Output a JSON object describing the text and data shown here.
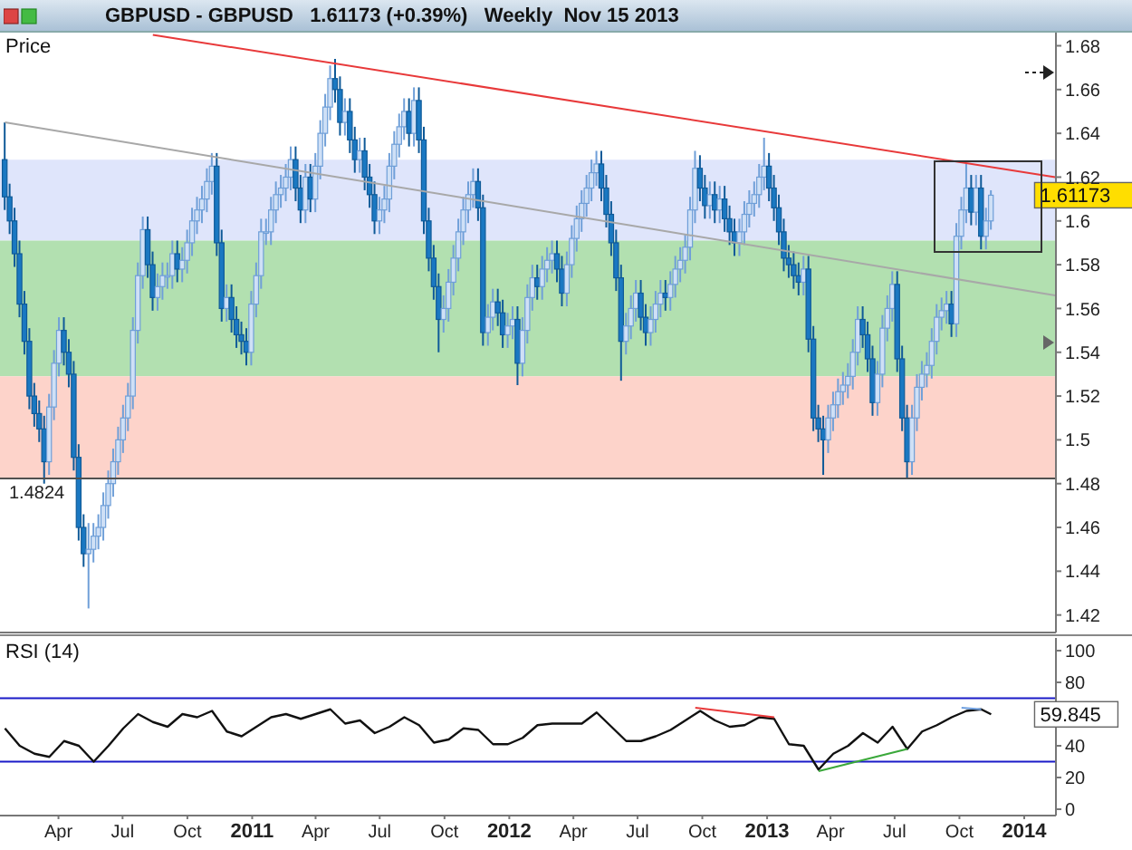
{
  "chart_data": [
    {
      "type": "candlestick",
      "title": "GBPUSD - GBPUSD   1.61173 (+0.39%)   Weekly  Nov 15 2013",
      "ylabel": "Price",
      "tick_labels": "y",
      "x": [
        "2010-01-15",
        "2010-01-22",
        "2010-01-29",
        "2010-02-05",
        "2010-02-12",
        "2010-02-19",
        "2010-02-26",
        "2010-03-05",
        "2010-03-12",
        "2010-03-19",
        "2010-03-26",
        "2010-04-02",
        "2010-04-09",
        "2010-04-16",
        "2010-04-23",
        "2010-04-30",
        "2010-05-07",
        "2010-05-14",
        "2010-05-21",
        "2010-05-28",
        "2010-06-04",
        "2010-06-11",
        "2010-06-18",
        "2010-06-25",
        "2010-07-02",
        "2010-07-09",
        "2010-07-16",
        "2010-07-23",
        "2010-07-30",
        "2010-08-06",
        "2010-08-13",
        "2010-08-20",
        "2010-08-27",
        "2010-09-03",
        "2010-09-10",
        "2010-09-17",
        "2010-09-24",
        "2010-10-01",
        "2010-10-08",
        "2010-10-15",
        "2010-10-22",
        "2010-10-29",
        "2010-11-05",
        "2010-11-12",
        "2010-11-19",
        "2010-11-26",
        "2010-12-03",
        "2010-12-10",
        "2010-12-17",
        "2010-12-24",
        "2010-12-31",
        "2011-01-07",
        "2011-01-14",
        "2011-01-21",
        "2011-01-28",
        "2011-02-04",
        "2011-02-11",
        "2011-02-18",
        "2011-02-25",
        "2011-03-04",
        "2011-03-11",
        "2011-03-18",
        "2011-03-25",
        "2011-04-01",
        "2011-04-08",
        "2011-04-15",
        "2011-04-22",
        "2011-04-29",
        "2011-05-06",
        "2011-05-13",
        "2011-05-20",
        "2011-05-27",
        "2011-06-03",
        "2011-06-10",
        "2011-06-17",
        "2011-06-24",
        "2011-07-01",
        "2011-07-08",
        "2011-07-15",
        "2011-07-22",
        "2011-07-29",
        "2011-08-05",
        "2011-08-12",
        "2011-08-19",
        "2011-08-26",
        "2011-09-02",
        "2011-09-09",
        "2011-09-16",
        "2011-09-23",
        "2011-09-30",
        "2011-10-07",
        "2011-10-14",
        "2011-10-21",
        "2011-10-28",
        "2011-11-04",
        "2011-11-11",
        "2011-11-18",
        "2011-11-25",
        "2011-12-02",
        "2011-12-09",
        "2011-12-16",
        "2011-12-23",
        "2011-12-30",
        "2012-01-06",
        "2012-01-13",
        "2012-01-20",
        "2012-01-27",
        "2012-02-03",
        "2012-02-10",
        "2012-02-17",
        "2012-02-24",
        "2012-03-02",
        "2012-03-09",
        "2012-03-16",
        "2012-03-23",
        "2012-03-30",
        "2012-04-06",
        "2012-04-13",
        "2012-04-20",
        "2012-04-27",
        "2012-05-04",
        "2012-05-11",
        "2012-05-18",
        "2012-05-25",
        "2012-06-01",
        "2012-06-08",
        "2012-06-15",
        "2012-06-22",
        "2012-06-29",
        "2012-07-06",
        "2012-07-13",
        "2012-07-20",
        "2012-07-27",
        "2012-08-03",
        "2012-08-10",
        "2012-08-17",
        "2012-08-24",
        "2012-08-31",
        "2012-09-07",
        "2012-09-14",
        "2012-09-21",
        "2012-09-28",
        "2012-10-05",
        "2012-10-12",
        "2012-10-19",
        "2012-10-26",
        "2012-11-02",
        "2012-11-09",
        "2012-11-16",
        "2012-11-23",
        "2012-11-30",
        "2012-12-07",
        "2012-12-14",
        "2012-12-21",
        "2012-12-28",
        "2013-01-04",
        "2013-01-11",
        "2013-01-18",
        "2013-01-25",
        "2013-02-01",
        "2013-02-08",
        "2013-02-15",
        "2013-02-22",
        "2013-03-01",
        "2013-03-08",
        "2013-03-15",
        "2013-03-22",
        "2013-03-29",
        "2013-04-05",
        "2013-04-12",
        "2013-04-19",
        "2013-04-26",
        "2013-05-03",
        "2013-05-10",
        "2013-05-17",
        "2013-05-24",
        "2013-05-31",
        "2013-06-07",
        "2013-06-14",
        "2013-06-21",
        "2013-06-28",
        "2013-07-05",
        "2013-07-12",
        "2013-07-19",
        "2013-07-26",
        "2013-08-02",
        "2013-08-09",
        "2013-08-16",
        "2013-08-23",
        "2013-08-30",
        "2013-09-06",
        "2013-09-13",
        "2013-09-20",
        "2013-09-27",
        "2013-10-04",
        "2013-10-11",
        "2013-10-18",
        "2013-10-25",
        "2013-11-01",
        "2013-11-08",
        "2013-11-15"
      ],
      "ohlc": [
        [
          1.628,
          1.645,
          1.605,
          1.611
        ],
        [
          1.611,
          1.617,
          1.594,
          1.6
        ],
        [
          1.6,
          1.606,
          1.579,
          1.585
        ],
        [
          1.585,
          1.591,
          1.556,
          1.562
        ],
        [
          1.562,
          1.568,
          1.539,
          1.545
        ],
        [
          1.545,
          1.551,
          1.514,
          1.52
        ],
        [
          1.52,
          1.526,
          1.506,
          1.512
        ],
        [
          1.512,
          1.518,
          1.499,
          1.505
        ],
        [
          1.505,
          1.511,
          1.48,
          1.49
        ],
        [
          1.49,
          1.521,
          1.484,
          1.515
        ],
        [
          1.515,
          1.541,
          1.509,
          1.535
        ],
        [
          1.535,
          1.556,
          1.529,
          1.55
        ],
        [
          1.55,
          1.556,
          1.534,
          1.54
        ],
        [
          1.54,
          1.546,
          1.524,
          1.53
        ],
        [
          1.53,
          1.536,
          1.486,
          1.492
        ],
        [
          1.492,
          1.498,
          1.454,
          1.46
        ],
        [
          1.46,
          1.466,
          1.442,
          1.448
        ],
        [
          1.448,
          1.462,
          1.423,
          1.45
        ],
        [
          1.45,
          1.462,
          1.444,
          1.456
        ],
        [
          1.456,
          1.466,
          1.45,
          1.46
        ],
        [
          1.46,
          1.476,
          1.454,
          1.47
        ],
        [
          1.47,
          1.486,
          1.464,
          1.48
        ],
        [
          1.48,
          1.496,
          1.474,
          1.49
        ],
        [
          1.49,
          1.506,
          1.484,
          1.5
        ],
        [
          1.5,
          1.516,
          1.494,
          1.51
        ],
        [
          1.51,
          1.526,
          1.504,
          1.52
        ],
        [
          1.52,
          1.556,
          1.514,
          1.55
        ],
        [
          1.55,
          1.581,
          1.544,
          1.575
        ],
        [
          1.575,
          1.602,
          1.569,
          1.596
        ],
        [
          1.596,
          1.602,
          1.574,
          1.58
        ],
        [
          1.58,
          1.586,
          1.559,
          1.565
        ],
        [
          1.565,
          1.576,
          1.559,
          1.57
        ],
        [
          1.57,
          1.581,
          1.564,
          1.575
        ],
        [
          1.575,
          1.581,
          1.569,
          1.575
        ],
        [
          1.575,
          1.591,
          1.569,
          1.585
        ],
        [
          1.585,
          1.591,
          1.572,
          1.578
        ],
        [
          1.578,
          1.588,
          1.572,
          1.582
        ],
        [
          1.582,
          1.596,
          1.576,
          1.59
        ],
        [
          1.59,
          1.606,
          1.584,
          1.6
        ],
        [
          1.6,
          1.611,
          1.594,
          1.605
        ],
        [
          1.605,
          1.616,
          1.599,
          1.61
        ],
        [
          1.61,
          1.624,
          1.604,
          1.618
        ],
        [
          1.618,
          1.631,
          1.612,
          1.625
        ],
        [
          1.625,
          1.631,
          1.584,
          1.59
        ],
        [
          1.59,
          1.596,
          1.554,
          1.56
        ],
        [
          1.56,
          1.571,
          1.554,
          1.565
        ],
        [
          1.565,
          1.571,
          1.549,
          1.555
        ],
        [
          1.555,
          1.561,
          1.542,
          1.548
        ],
        [
          1.548,
          1.554,
          1.539,
          1.545
        ],
        [
          1.545,
          1.551,
          1.534,
          1.54
        ],
        [
          1.54,
          1.568,
          1.534,
          1.562
        ],
        [
          1.562,
          1.581,
          1.556,
          1.575
        ],
        [
          1.575,
          1.601,
          1.569,
          1.595
        ],
        [
          1.595,
          1.601,
          1.589,
          1.595
        ],
        [
          1.595,
          1.611,
          1.589,
          1.605
        ],
        [
          1.605,
          1.618,
          1.599,
          1.612
        ],
        [
          1.612,
          1.621,
          1.606,
          1.615
        ],
        [
          1.615,
          1.626,
          1.609,
          1.62
        ],
        [
          1.62,
          1.634,
          1.614,
          1.628
        ],
        [
          1.628,
          1.634,
          1.609,
          1.615
        ],
        [
          1.615,
          1.621,
          1.599,
          1.605
        ],
        [
          1.605,
          1.626,
          1.599,
          1.62
        ],
        [
          1.62,
          1.626,
          1.604,
          1.61
        ],
        [
          1.61,
          1.631,
          1.604,
          1.625
        ],
        [
          1.625,
          1.646,
          1.619,
          1.64
        ],
        [
          1.64,
          1.658,
          1.634,
          1.652
        ],
        [
          1.652,
          1.671,
          1.646,
          1.665
        ],
        [
          1.665,
          1.674,
          1.654,
          1.66
        ],
        [
          1.66,
          1.666,
          1.639,
          1.645
        ],
        [
          1.645,
          1.656,
          1.639,
          1.65
        ],
        [
          1.65,
          1.656,
          1.631,
          1.637
        ],
        [
          1.637,
          1.643,
          1.622,
          1.628
        ],
        [
          1.628,
          1.638,
          1.622,
          1.632
        ],
        [
          1.632,
          1.638,
          1.614,
          1.62
        ],
        [
          1.62,
          1.626,
          1.606,
          1.612
        ],
        [
          1.612,
          1.618,
          1.594,
          1.6
        ],
        [
          1.6,
          1.611,
          1.594,
          1.605
        ],
        [
          1.605,
          1.616,
          1.599,
          1.61
        ],
        [
          1.61,
          1.631,
          1.604,
          1.625
        ],
        [
          1.625,
          1.641,
          1.619,
          1.635
        ],
        [
          1.635,
          1.649,
          1.629,
          1.643
        ],
        [
          1.643,
          1.656,
          1.637,
          1.65
        ],
        [
          1.65,
          1.656,
          1.634,
          1.64
        ],
        [
          1.64,
          1.661,
          1.634,
          1.655
        ],
        [
          1.655,
          1.661,
          1.631,
          1.637
        ],
        [
          1.637,
          1.643,
          1.594,
          1.6
        ],
        [
          1.6,
          1.606,
          1.577,
          1.583
        ],
        [
          1.583,
          1.589,
          1.564,
          1.57
        ],
        [
          1.57,
          1.576,
          1.54,
          1.555
        ],
        [
          1.555,
          1.566,
          1.549,
          1.56
        ],
        [
          1.56,
          1.578,
          1.554,
          1.572
        ],
        [
          1.572,
          1.589,
          1.566,
          1.583
        ],
        [
          1.583,
          1.601,
          1.577,
          1.595
        ],
        [
          1.595,
          1.611,
          1.589,
          1.605
        ],
        [
          1.605,
          1.618,
          1.599,
          1.612
        ],
        [
          1.612,
          1.624,
          1.606,
          1.618
        ],
        [
          1.618,
          1.624,
          1.6,
          1.606
        ],
        [
          1.606,
          1.612,
          1.543,
          1.549
        ],
        [
          1.549,
          1.562,
          1.543,
          1.556
        ],
        [
          1.556,
          1.569,
          1.55,
          1.563
        ],
        [
          1.563,
          1.569,
          1.552,
          1.558
        ],
        [
          1.558,
          1.564,
          1.542,
          1.548
        ],
        [
          1.548,
          1.558,
          1.542,
          1.552
        ],
        [
          1.552,
          1.561,
          1.546,
          1.555
        ],
        [
          1.555,
          1.561,
          1.525,
          1.535
        ],
        [
          1.535,
          1.556,
          1.529,
          1.55
        ],
        [
          1.55,
          1.571,
          1.544,
          1.565
        ],
        [
          1.565,
          1.58,
          1.559,
          1.574
        ],
        [
          1.574,
          1.58,
          1.564,
          1.57
        ],
        [
          1.57,
          1.584,
          1.564,
          1.578
        ],
        [
          1.578,
          1.588,
          1.572,
          1.582
        ],
        [
          1.582,
          1.591,
          1.576,
          1.585
        ],
        [
          1.585,
          1.591,
          1.572,
          1.578
        ],
        [
          1.578,
          1.584,
          1.561,
          1.567
        ],
        [
          1.567,
          1.586,
          1.561,
          1.58
        ],
        [
          1.58,
          1.598,
          1.574,
          1.592
        ],
        [
          1.592,
          1.607,
          1.586,
          1.601
        ],
        [
          1.601,
          1.614,
          1.595,
          1.608
        ],
        [
          1.608,
          1.621,
          1.602,
          1.615
        ],
        [
          1.615,
          1.628,
          1.609,
          1.622
        ],
        [
          1.622,
          1.632,
          1.616,
          1.626
        ],
        [
          1.626,
          1.632,
          1.609,
          1.615
        ],
        [
          1.615,
          1.621,
          1.597,
          1.603
        ],
        [
          1.603,
          1.609,
          1.584,
          1.59
        ],
        [
          1.59,
          1.596,
          1.568,
          1.574
        ],
        [
          1.574,
          1.58,
          1.527,
          1.545
        ],
        [
          1.545,
          1.558,
          1.539,
          1.552
        ],
        [
          1.552,
          1.566,
          1.546,
          1.56
        ],
        [
          1.56,
          1.573,
          1.554,
          1.567
        ],
        [
          1.567,
          1.573,
          1.55,
          1.556
        ],
        [
          1.556,
          1.562,
          1.543,
          1.549
        ],
        [
          1.549,
          1.561,
          1.543,
          1.555
        ],
        [
          1.555,
          1.568,
          1.549,
          1.562
        ],
        [
          1.562,
          1.573,
          1.556,
          1.567
        ],
        [
          1.567,
          1.573,
          1.559,
          1.565
        ],
        [
          1.565,
          1.577,
          1.559,
          1.571
        ],
        [
          1.571,
          1.584,
          1.565,
          1.578
        ],
        [
          1.578,
          1.588,
          1.572,
          1.582
        ],
        [
          1.582,
          1.594,
          1.576,
          1.588
        ],
        [
          1.588,
          1.611,
          1.582,
          1.605
        ],
        [
          1.605,
          1.632,
          1.599,
          1.624
        ],
        [
          1.624,
          1.63,
          1.609,
          1.615
        ],
        [
          1.615,
          1.621,
          1.601,
          1.607
        ],
        [
          1.607,
          1.618,
          1.601,
          1.612
        ],
        [
          1.612,
          1.618,
          1.599,
          1.605
        ],
        [
          1.605,
          1.616,
          1.599,
          1.61
        ],
        [
          1.61,
          1.616,
          1.595,
          1.601
        ],
        [
          1.601,
          1.607,
          1.589,
          1.595
        ],
        [
          1.595,
          1.601,
          1.584,
          1.59
        ],
        [
          1.59,
          1.601,
          1.584,
          1.595
        ],
        [
          1.595,
          1.609,
          1.589,
          1.603
        ],
        [
          1.603,
          1.614,
          1.597,
          1.608
        ],
        [
          1.608,
          1.618,
          1.602,
          1.612
        ],
        [
          1.612,
          1.626,
          1.606,
          1.62
        ],
        [
          1.62,
          1.638,
          1.614,
          1.625
        ],
        [
          1.625,
          1.631,
          1.609,
          1.615
        ],
        [
          1.615,
          1.621,
          1.6,
          1.606
        ],
        [
          1.606,
          1.612,
          1.589,
          1.595
        ],
        [
          1.595,
          1.601,
          1.577,
          1.583
        ],
        [
          1.583,
          1.589,
          1.574,
          1.58
        ],
        [
          1.58,
          1.586,
          1.569,
          1.575
        ],
        [
          1.575,
          1.581,
          1.566,
          1.572
        ],
        [
          1.572,
          1.584,
          1.566,
          1.578
        ],
        [
          1.578,
          1.584,
          1.54,
          1.546
        ],
        [
          1.546,
          1.552,
          1.504,
          1.51
        ],
        [
          1.51,
          1.516,
          1.499,
          1.505
        ],
        [
          1.505,
          1.511,
          1.484,
          1.5
        ],
        [
          1.5,
          1.516,
          1.494,
          1.51
        ],
        [
          1.51,
          1.522,
          1.504,
          1.516
        ],
        [
          1.516,
          1.528,
          1.51,
          1.522
        ],
        [
          1.522,
          1.531,
          1.516,
          1.525
        ],
        [
          1.525,
          1.535,
          1.519,
          1.529
        ],
        [
          1.529,
          1.546,
          1.523,
          1.54
        ],
        [
          1.54,
          1.561,
          1.534,
          1.555
        ],
        [
          1.555,
          1.561,
          1.542,
          1.548
        ],
        [
          1.548,
          1.554,
          1.531,
          1.537
        ],
        [
          1.537,
          1.543,
          1.511,
          1.517
        ],
        [
          1.517,
          1.536,
          1.511,
          1.53
        ],
        [
          1.53,
          1.557,
          1.524,
          1.551
        ],
        [
          1.551,
          1.566,
          1.545,
          1.56
        ],
        [
          1.56,
          1.577,
          1.554,
          1.571
        ],
        [
          1.571,
          1.577,
          1.531,
          1.537
        ],
        [
          1.537,
          1.543,
          1.504,
          1.51
        ],
        [
          1.51,
          1.516,
          1.482,
          1.49
        ],
        [
          1.49,
          1.516,
          1.484,
          1.51
        ],
        [
          1.51,
          1.53,
          1.504,
          1.524
        ],
        [
          1.524,
          1.536,
          1.518,
          1.53
        ],
        [
          1.53,
          1.54,
          1.524,
          1.534
        ],
        [
          1.534,
          1.551,
          1.528,
          1.545
        ],
        [
          1.545,
          1.562,
          1.539,
          1.556
        ],
        [
          1.556,
          1.565,
          1.55,
          1.559
        ],
        [
          1.559,
          1.568,
          1.553,
          1.562
        ],
        [
          1.562,
          1.568,
          1.547,
          1.553
        ],
        [
          1.553,
          1.599,
          1.547,
          1.593
        ],
        [
          1.593,
          1.611,
          1.587,
          1.605
        ],
        [
          1.605,
          1.626,
          1.599,
          1.615
        ],
        [
          1.615,
          1.621,
          1.598,
          1.604
        ],
        [
          1.604,
          1.621,
          1.598,
          1.615
        ],
        [
          1.615,
          1.621,
          1.587,
          1.593
        ],
        [
          1.593,
          1.606,
          1.587,
          1.6
        ],
        [
          1.6,
          1.614,
          1.596,
          1.61173
        ]
      ],
      "series": [
        {
          "type": "line",
          "color": "#e8393a",
          "x": [
            "2010-08-13",
            "2014-02-14"
          ],
          "values": [
            1.685,
            1.62
          ]
        },
        {
          "type": "line",
          "color": "#a8a8a8",
          "x": [
            "2010-01-15",
            "2014-02-14"
          ],
          "values": [
            1.645,
            1.566
          ]
        }
      ],
      "xlim": [
        "2010-01-08",
        "2014-02-15"
      ],
      "ylim": [
        1.412,
        1.686
      ],
      "yticks": [
        1.42,
        1.44,
        1.46,
        1.48,
        1.5,
        1.52,
        1.54,
        1.56,
        1.58,
        1.6,
        1.62,
        1.64,
        1.66,
        1.68
      ],
      "bands": [
        {
          "axis": "y",
          "from": 1.591,
          "to": 1.628,
          "color": "#dfe5fb"
        },
        {
          "axis": "y",
          "from": 1.529,
          "to": 1.591,
          "color": "#b2e0b0"
        },
        {
          "axis": "y",
          "from": 1.4824,
          "to": 1.529,
          "color": "#fdd3ca"
        }
      ],
      "ref_lines": [
        {
          "axis": "y",
          "value": 1.4824,
          "label": "1.4824",
          "color": "#505050"
        }
      ],
      "annotations": [
        {
          "text": "1.61173",
          "x": "2013-11-15",
          "y": 1.61173
        }
      ]
    },
    {
      "type": "line",
      "ylabel": "RSI (14)",
      "series": [
        {
          "color": "#111111",
          "x": [
            "2010-01-15",
            "2010-02-05",
            "2010-02-26",
            "2010-03-19",
            "2010-04-09",
            "2010-04-30",
            "2010-05-21",
            "2010-06-11",
            "2010-07-02",
            "2010-07-23",
            "2010-08-13",
            "2010-09-03",
            "2010-09-24",
            "2010-10-15",
            "2010-11-05",
            "2010-11-26",
            "2010-12-17",
            "2011-01-07",
            "2011-01-28",
            "2011-02-18",
            "2011-03-11",
            "2011-04-01",
            "2011-04-22",
            "2011-05-13",
            "2011-06-03",
            "2011-06-24",
            "2011-07-15",
            "2011-08-05",
            "2011-08-26",
            "2011-09-16",
            "2011-10-07",
            "2011-10-28",
            "2011-11-18",
            "2011-12-09",
            "2011-12-30",
            "2012-01-20",
            "2012-02-10",
            "2012-03-02",
            "2012-03-23",
            "2012-04-13",
            "2012-05-04",
            "2012-05-25",
            "2012-06-15",
            "2012-07-06",
            "2012-07-27",
            "2012-08-17",
            "2012-09-07",
            "2012-09-28",
            "2012-10-19",
            "2012-11-09",
            "2012-11-30",
            "2012-12-21",
            "2013-01-11",
            "2013-02-01",
            "2013-02-22",
            "2013-03-15",
            "2013-04-05",
            "2013-04-26",
            "2013-05-17",
            "2013-06-07",
            "2013-06-28",
            "2013-07-19",
            "2013-08-09",
            "2013-08-30",
            "2013-09-20",
            "2013-10-11",
            "2013-11-01",
            "2013-11-15"
          ],
          "values": [
            51,
            40,
            35,
            33,
            43,
            40,
            30,
            40,
            51,
            60,
            55,
            52,
            60,
            58,
            62,
            49,
            46,
            52,
            58,
            60,
            57,
            60,
            63,
            54,
            56,
            48,
            52,
            58,
            53,
            42,
            44,
            51,
            50,
            41,
            41,
            45,
            53,
            54,
            54,
            54,
            61,
            52,
            43,
            43,
            46,
            50,
            56,
            62,
            56,
            52,
            53,
            58,
            57,
            41,
            40,
            25,
            35,
            40,
            48,
            42,
            52,
            38,
            49,
            53,
            58,
            62,
            63,
            59.845
          ]
        },
        {
          "color": "#e8393a",
          "x": [
            "2012-09-21",
            "2013-01-11"
          ],
          "values": [
            64,
            58
          ]
        },
        {
          "color": "#3aa83a",
          "x": [
            "2013-03-15",
            "2013-07-19"
          ],
          "values": [
            24,
            38
          ]
        },
        {
          "color": "#6fa0e0",
          "x": [
            "2013-10-04",
            "2013-11-01"
          ],
          "values": [
            64,
            63
          ]
        }
      ],
      "xlim": [
        "2010-01-08",
        "2014-02-15"
      ],
      "xticks": [
        {
          "value": "2010-04-01",
          "label": "Apr"
        },
        {
          "value": "2010-07-01",
          "label": "Jul"
        },
        {
          "value": "2010-10-01",
          "label": "Oct"
        },
        {
          "value": "2011-01-01",
          "label": "2011"
        },
        {
          "value": "2011-04-01",
          "label": "Apr"
        },
        {
          "value": "2011-07-01",
          "label": "Jul"
        },
        {
          "value": "2011-10-01",
          "label": "Oct"
        },
        {
          "value": "2012-01-01",
          "label": "2012"
        },
        {
          "value": "2012-04-01",
          "label": "Apr"
        },
        {
          "value": "2012-07-01",
          "label": "Jul"
        },
        {
          "value": "2012-10-01",
          "label": "Oct"
        },
        {
          "value": "2013-01-01",
          "label": "2013"
        },
        {
          "value": "2013-04-01",
          "label": "Apr"
        },
        {
          "value": "2013-07-01",
          "label": "Jul"
        },
        {
          "value": "2013-10-01",
          "label": "Oct"
        },
        {
          "value": "2014-01-01",
          "label": "2014"
        }
      ],
      "ylim": [
        -4,
        108
      ],
      "yticks": [
        0,
        20,
        40,
        {
          "value": 60,
          "label": null
        },
        80,
        100
      ],
      "ref_lines": [
        {
          "axis": "y",
          "value": 70,
          "color": "#1a1ac8"
        },
        {
          "axis": "y",
          "value": 30,
          "color": "#1a1ac8"
        }
      ],
      "annotations": [
        {
          "text": "59.845",
          "x": "2013-11-15",
          "y": 59.845
        }
      ]
    }
  ]
}
